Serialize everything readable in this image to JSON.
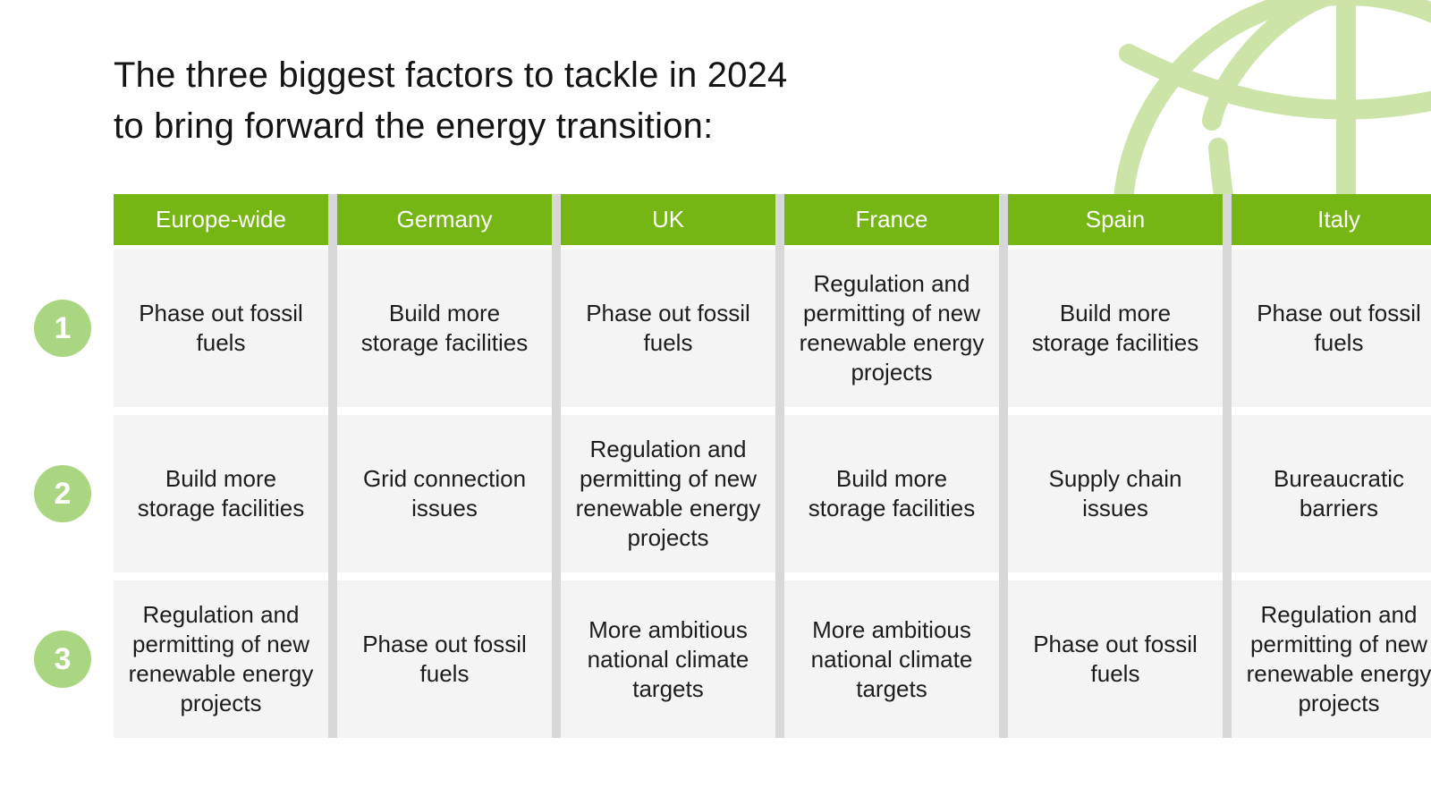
{
  "title": {
    "line1": "The three biggest factors to tackle in 2024",
    "line2": "to bring forward the energy transition:"
  },
  "table": {
    "row_numbers": [
      "1",
      "2",
      "3"
    ],
    "columns": [
      {
        "label": "Europe-wide",
        "factors": [
          "Phase out fossil fuels",
          "Build more storage facilities",
          "Regulation and permitting of new renewable energy projects"
        ]
      },
      {
        "label": "Germany",
        "factors": [
          "Build more storage facilities",
          "Grid connection issues",
          "Phase out fossil fuels"
        ]
      },
      {
        "label": "UK",
        "factors": [
          "Phase out fossil fuels",
          "Regulation and permitting of new renewable energy projects",
          "More ambitious national climate targets"
        ]
      },
      {
        "label": "France",
        "factors": [
          "Regulation and permitting of new renewable energy projects",
          "Build more storage facilities",
          "More ambitious national climate targets"
        ]
      },
      {
        "label": "Spain",
        "factors": [
          "Build more storage facilities",
          "Supply chain issues",
          "Phase out fossil fuels"
        ]
      },
      {
        "label": "Italy",
        "factors": [
          "Phase out fossil fuels",
          "Bureaucratic barriers",
          "Regulation and permitting of new renewable energy projects"
        ]
      }
    ]
  },
  "icons": {
    "globe": "globe-icon"
  },
  "colors": {
    "accent_green": "#76b614",
    "badge_green": "#abd681",
    "globe_green": "#cde4a9",
    "cell_background": "#f4f4f4",
    "separator_gray": "#d8d8d8",
    "text": "#1d1d1d"
  }
}
